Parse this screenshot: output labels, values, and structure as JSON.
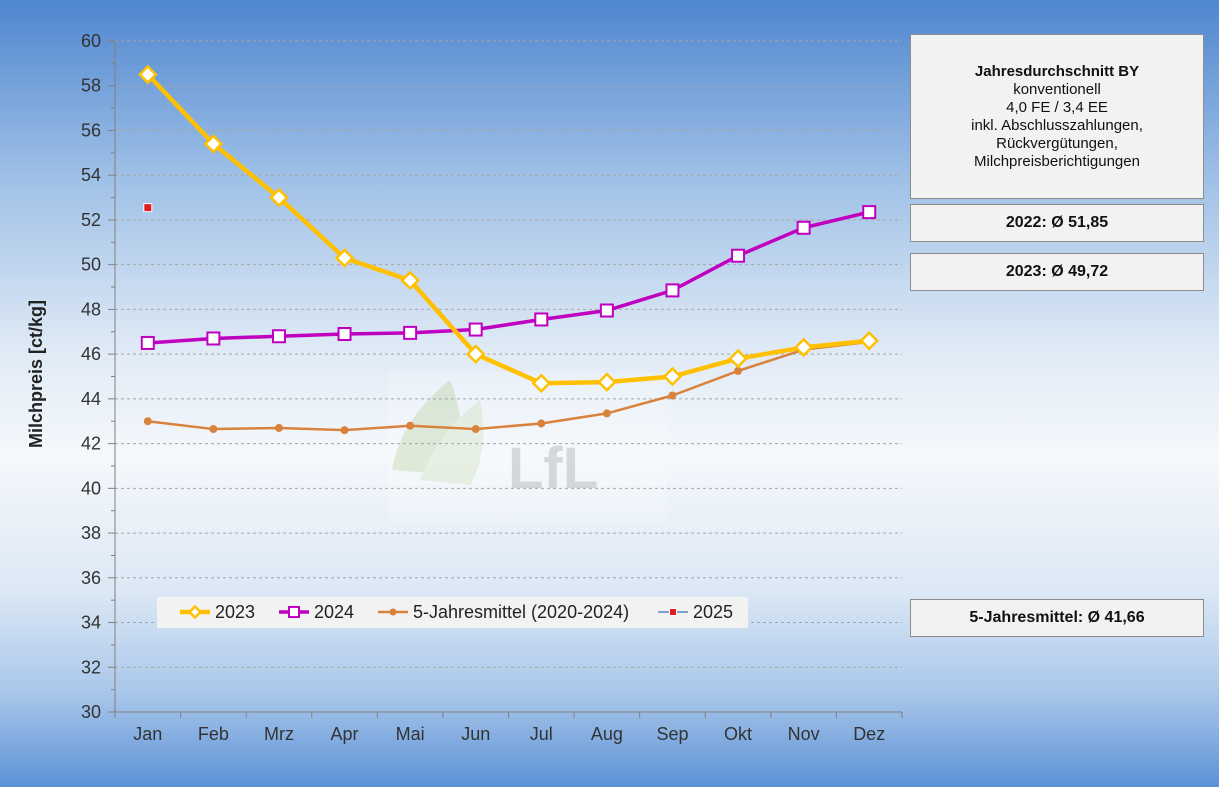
{
  "chart_data": {
    "type": "line",
    "ylabel": "Milchpreis [ct/kg]",
    "xlabel": "",
    "ylim": [
      30,
      60
    ],
    "ytick_step": 2,
    "categories": [
      "Jan",
      "Feb",
      "Mrz",
      "Apr",
      "Mai",
      "Jun",
      "Jul",
      "Aug",
      "Sep",
      "Okt",
      "Nov",
      "Dez"
    ],
    "series": [
      {
        "name": "2023",
        "color": "#ffc000",
        "marker": "diamond",
        "values": [
          58.5,
          55.4,
          53.0,
          50.3,
          49.3,
          46.0,
          44.7,
          44.75,
          45.0,
          45.8,
          46.3,
          46.6
        ]
      },
      {
        "name": "2024",
        "color": "#c000c0",
        "marker": "square",
        "values": [
          46.5,
          46.7,
          46.8,
          46.9,
          46.95,
          47.1,
          47.55,
          47.95,
          48.85,
          50.4,
          51.65,
          52.35
        ]
      },
      {
        "name": "5-Jahresmittel (2020-2024)",
        "color": "#d9823b",
        "marker": "circle",
        "values": [
          43.0,
          42.65,
          42.7,
          42.6,
          42.8,
          42.65,
          42.9,
          43.35,
          44.15,
          45.25,
          46.2,
          46.55
        ]
      },
      {
        "name": "2025",
        "color": "#e31c23",
        "marker": "small-square",
        "values": [
          52.55,
          null,
          null,
          null,
          null,
          null,
          null,
          null,
          null,
          null,
          null,
          null
        ]
      }
    ],
    "grid": "horizontal-dashed",
    "legend_position": "bottom-left inside plot",
    "watermark": "LfL"
  },
  "info": {
    "title": "Jahresdurchschnitt BY",
    "line1": "konventionell",
    "line2": "4,0 FE / 3,4 EE",
    "line3": "inkl. Abschlusszahlungen,",
    "line4": "Rückvergütungen,",
    "line5": "Milchpreisberichtigungen",
    "avg_2022": "2022: Ø 51,85",
    "avg_2023": "2023: Ø 49,72",
    "avg_5j": "5-Jahresmittel: Ø 41,66"
  }
}
